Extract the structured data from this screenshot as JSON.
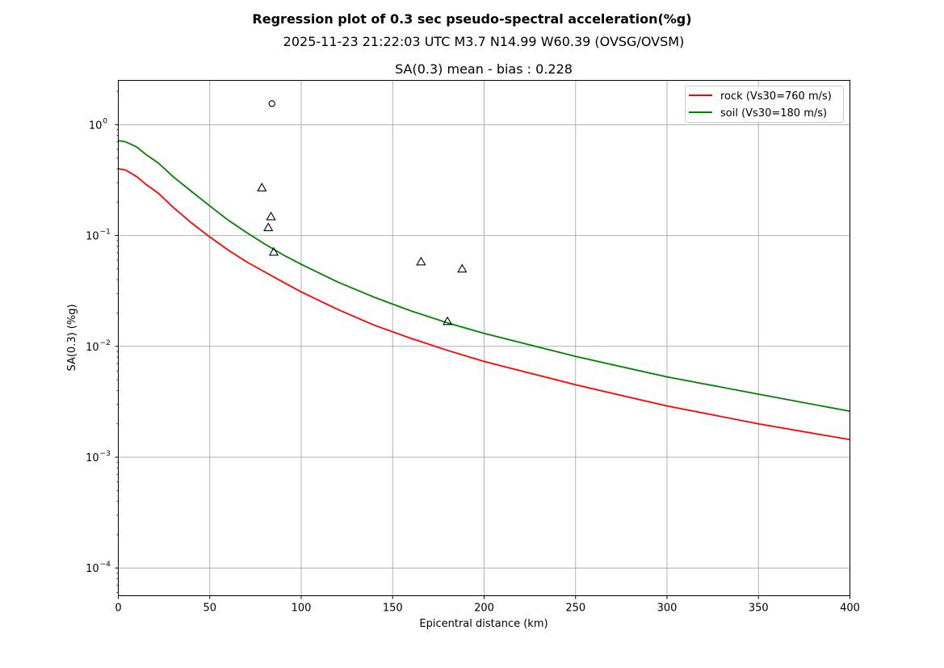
{
  "chart_data": {
    "type": "line",
    "suptitle": "Regression plot of 0.3 sec pseudo-spectral acceleration(%g)",
    "event": "2025-11-23 21:22:03 UTC M3.7 N14.99 W60.39 (OVSG/OVSM)",
    "title": "SA(0.3) mean - bias : 0.228",
    "xlabel": "Epicentral distance (km)",
    "ylabel": "SA(0.3) (%g)",
    "xlim": [
      0,
      400
    ],
    "ylim_log10": [
      -4.25,
      0.4
    ],
    "xscale": "linear",
    "yscale": "log",
    "grid": true,
    "legend_position": "top-right",
    "xticks": [
      0,
      50,
      100,
      150,
      200,
      250,
      300,
      350,
      400
    ],
    "xtick_labels": [
      "0",
      "50",
      "100",
      "150",
      "200",
      "250",
      "300",
      "350",
      "400"
    ],
    "yticks_exp": [
      -4,
      -3,
      -2,
      -1,
      0
    ],
    "series": [
      {
        "name": "rock (Vs30=760 m/s)",
        "color": "#ff0000",
        "x": [
          0,
          4,
          10,
          15,
          22,
          30,
          40,
          50,
          60,
          70,
          80,
          90,
          100,
          120,
          140,
          160,
          180,
          200,
          250,
          300,
          350,
          400
        ],
        "y": [
          0.4,
          0.39,
          0.34,
          0.29,
          0.24,
          0.18,
          0.13,
          0.097,
          0.074,
          0.058,
          0.047,
          0.038,
          0.031,
          0.0215,
          0.0155,
          0.0118,
          0.0092,
          0.0073,
          0.0045,
          0.0029,
          0.002,
          0.00144
        ]
      },
      {
        "name": "soil (Vs30=180 m/s)",
        "color": "#008000",
        "x": [
          0,
          4,
          10,
          15,
          22,
          30,
          40,
          50,
          60,
          70,
          80,
          90,
          100,
          120,
          140,
          160,
          180,
          200,
          250,
          300,
          350,
          400
        ],
        "y": [
          0.72,
          0.7,
          0.63,
          0.54,
          0.45,
          0.34,
          0.25,
          0.185,
          0.138,
          0.107,
          0.084,
          0.067,
          0.055,
          0.038,
          0.0277,
          0.0209,
          0.0163,
          0.0131,
          0.0081,
          0.0053,
          0.0037,
          0.0026
        ]
      }
    ],
    "stations": [
      {
        "marker": "circle",
        "x": 84,
        "y": 1.55
      },
      {
        "marker": "triangle",
        "x": 78.5,
        "y": 0.27
      },
      {
        "marker": "triangle",
        "x": 83.5,
        "y": 0.148
      },
      {
        "marker": "triangle",
        "x": 82,
        "y": 0.118
      },
      {
        "marker": "triangle",
        "x": 85,
        "y": 0.071
      },
      {
        "marker": "triangle",
        "x": 165.5,
        "y": 0.058
      },
      {
        "marker": "triangle",
        "x": 188,
        "y": 0.05
      },
      {
        "marker": "triangle",
        "x": 180,
        "y": 0.0168
      }
    ]
  }
}
